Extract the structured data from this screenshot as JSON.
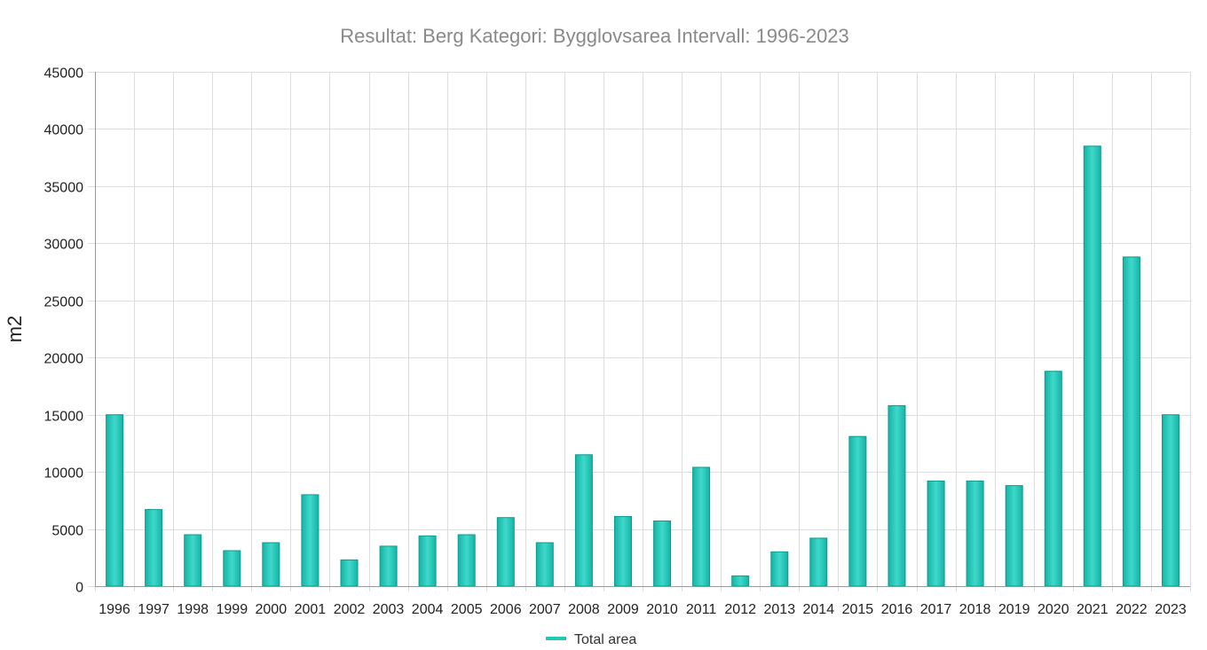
{
  "chart_data": {
    "type": "bar",
    "title": "Resultat: Berg Kategori: Bygglovsarea Intervall: 1996-2023",
    "xlabel": "",
    "ylabel": "m2",
    "ylim": [
      0,
      45000
    ],
    "yticks": [
      0,
      5000,
      10000,
      15000,
      20000,
      25000,
      30000,
      35000,
      40000,
      45000
    ],
    "grid": true,
    "legend_placement": "bottom-center",
    "categories": [
      "1996",
      "1997",
      "1998",
      "1999",
      "2000",
      "2001",
      "2002",
      "2003",
      "2004",
      "2005",
      "2006",
      "2007",
      "2008",
      "2009",
      "2010",
      "2011",
      "2012",
      "2013",
      "2014",
      "2015",
      "2016",
      "2017",
      "2018",
      "2019",
      "2020",
      "2021",
      "2022",
      "2023"
    ],
    "series": [
      {
        "name": "Total area",
        "color": "#1fc8b8",
        "values": [
          15000,
          6700,
          4500,
          3100,
          3800,
          8000,
          2300,
          3500,
          4400,
          4500,
          6000,
          3800,
          11500,
          6100,
          5700,
          10400,
          900,
          3000,
          4200,
          13100,
          15800,
          9200,
          9200,
          8800,
          18800,
          38500,
          28800,
          15000
        ]
      }
    ]
  }
}
